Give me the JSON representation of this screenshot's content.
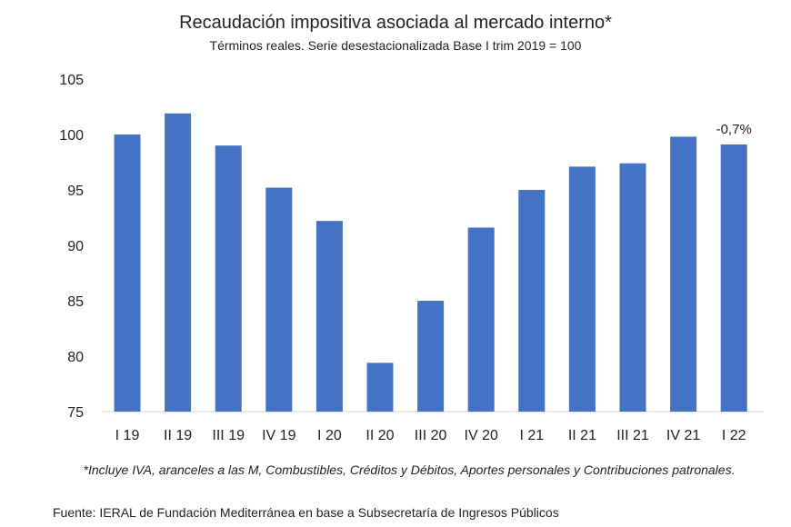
{
  "chart_data": {
    "type": "bar",
    "title": "Recaudación impositiva asociada al mercado interno*",
    "subtitle": "Términos reales. Serie desestacionalizada Base I trim 2019 = 100",
    "categories": [
      "I 19",
      "II 19",
      "III 19",
      "IV 19",
      "I 20",
      "II 20",
      "III 20",
      "IV 20",
      "I 21",
      "II 21",
      "III 21",
      "IV 21",
      "I 22"
    ],
    "values": [
      100.0,
      101.9,
      99.0,
      95.2,
      92.2,
      79.4,
      85.0,
      91.6,
      95.0,
      97.1,
      97.4,
      99.8,
      99.1
    ],
    "ylim": [
      75,
      105
    ],
    "yticks": [
      75,
      80,
      85,
      90,
      95,
      100,
      105
    ],
    "annotation": {
      "category": "I 22",
      "text": "-0,7%"
    },
    "bar_color": "#4472C4",
    "grid": false,
    "xlabel": "",
    "ylabel": ""
  },
  "footnote": "*Incluye IVA, aranceles a las M, Combustibles, Créditos y Débitos, Aportes personales y Contribuciones patronales.",
  "source": "Fuente: IERAL de Fundación Mediterránea en base a Subsecretaría de Ingresos Públicos"
}
